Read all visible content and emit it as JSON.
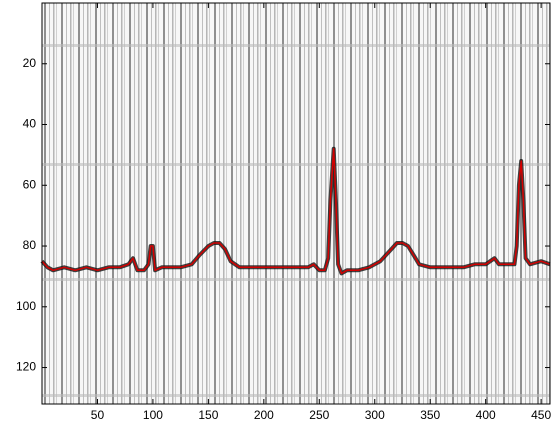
{
  "chart_data": {
    "type": "line",
    "x": [
      0,
      5,
      10,
      20,
      30,
      40,
      50,
      60,
      70,
      78,
      82,
      86,
      92,
      96,
      98,
      100,
      102,
      108,
      115,
      125,
      135,
      142,
      150,
      155,
      160,
      165,
      170,
      178,
      190,
      200,
      210,
      220,
      230,
      240,
      245,
      250,
      255,
      258,
      260,
      263,
      265,
      267,
      270,
      275,
      285,
      295,
      305,
      315,
      320,
      325,
      330,
      335,
      340,
      350,
      360,
      370,
      380,
      390,
      400,
      408,
      412,
      420,
      426,
      428,
      430,
      432,
      434,
      436,
      440,
      450,
      458
    ],
    "series": [
      {
        "color": "#d40000",
        "values": [
          85,
          87,
          88,
          87,
          88,
          87,
          88,
          87,
          87,
          86,
          84,
          88,
          88,
          86,
          80,
          80,
          88,
          87,
          87,
          87,
          86,
          83,
          80,
          79,
          79,
          81,
          85,
          87,
          87,
          87,
          87,
          87,
          87,
          87,
          86,
          88,
          88,
          84,
          65,
          48,
          65,
          86,
          89,
          88,
          88,
          87,
          85,
          81,
          79,
          79,
          80,
          83,
          86,
          87,
          87,
          87,
          87,
          86,
          86,
          84,
          86,
          86,
          86,
          80,
          60,
          52,
          65,
          84,
          86,
          85,
          86
        ]
      }
    ],
    "xlim": [
      0,
      458
    ],
    "ylim": [
      0,
      132
    ],
    "y_reversed": true,
    "xticks": [
      50,
      100,
      150,
      200,
      250,
      300,
      350,
      400,
      450
    ],
    "yticks": [
      20,
      40,
      60,
      80,
      100,
      120
    ]
  }
}
